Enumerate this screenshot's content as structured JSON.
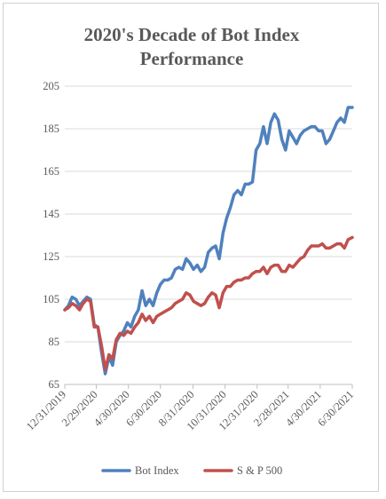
{
  "chart_data": {
    "type": "line",
    "title_line1": "2020's Decade of Bot Index",
    "title_line2": "Performance",
    "xlabel": "",
    "ylabel": "",
    "ylim": [
      65,
      205
    ],
    "yticks": [
      65,
      85,
      105,
      125,
      145,
      165,
      185,
      205
    ],
    "xticks": [
      "12/31/2019",
      "2/29/2020",
      "4/30/2020",
      "6/30/2020",
      "8/31/2020",
      "10/31/2020",
      "12/31/2020",
      "2/28/2021",
      "4/30/2021",
      "6/30/2021"
    ],
    "grid": true,
    "legend_position": "bottom",
    "series": [
      {
        "name": "Bot Index",
        "color": "#4f81bd",
        "points": [
          [
            "12/31/2019",
            100
          ],
          [
            "1/7/2020",
            102
          ],
          [
            "1/14/2020",
            106
          ],
          [
            "1/21/2020",
            105
          ],
          [
            "1/28/2020",
            102
          ],
          [
            "2/4/2020",
            104
          ],
          [
            "2/11/2020",
            106
          ],
          [
            "2/18/2020",
            105
          ],
          [
            "2/25/2020",
            93
          ],
          [
            "3/3/2020",
            92
          ],
          [
            "3/10/2020",
            80
          ],
          [
            "3/17/2020",
            70
          ],
          [
            "3/24/2020",
            78
          ],
          [
            "3/31/2020",
            74
          ],
          [
            "4/7/2020",
            85
          ],
          [
            "4/14/2020",
            88
          ],
          [
            "4/21/2020",
            90
          ],
          [
            "4/28/2020",
            94
          ],
          [
            "5/5/2020",
            92
          ],
          [
            "5/12/2020",
            97
          ],
          [
            "5/19/2020",
            100
          ],
          [
            "5/26/2020",
            109
          ],
          [
            "6/2/2020",
            102
          ],
          [
            "6/9/2020",
            105
          ],
          [
            "6/16/2020",
            102
          ],
          [
            "6/23/2020",
            108
          ],
          [
            "6/30/2020",
            112
          ],
          [
            "7/7/2020",
            114
          ],
          [
            "7/14/2020",
            114
          ],
          [
            "7/21/2020",
            115
          ],
          [
            "7/28/2020",
            119
          ],
          [
            "8/4/2020",
            120
          ],
          [
            "8/11/2020",
            119
          ],
          [
            "8/18/2020",
            124
          ],
          [
            "8/25/2020",
            122
          ],
          [
            "9/1/2020",
            119
          ],
          [
            "9/8/2020",
            121
          ],
          [
            "9/15/2020",
            118
          ],
          [
            "9/22/2020",
            120
          ],
          [
            "9/29/2020",
            127
          ],
          [
            "10/6/2020",
            129
          ],
          [
            "10/13/2020",
            130
          ],
          [
            "10/20/2020",
            124
          ],
          [
            "10/27/2020",
            136
          ],
          [
            "11/3/2020",
            143
          ],
          [
            "11/10/2020",
            148
          ],
          [
            "11/17/2020",
            154
          ],
          [
            "11/24/2020",
            156
          ],
          [
            "12/1/2020",
            154
          ],
          [
            "12/8/2020",
            159
          ],
          [
            "12/15/2020",
            159
          ],
          [
            "12/22/2020",
            160
          ],
          [
            "12/29/2020",
            175
          ],
          [
            "1/5/2021",
            178
          ],
          [
            "1/12/2021",
            186
          ],
          [
            "1/19/2021",
            178
          ],
          [
            "1/26/2021",
            188
          ],
          [
            "2/2/2021",
            192
          ],
          [
            "2/9/2021",
            189
          ],
          [
            "2/16/2021",
            180
          ],
          [
            "2/23/2021",
            175
          ],
          [
            "3/2/2021",
            184
          ],
          [
            "3/9/2021",
            181
          ],
          [
            "3/16/2021",
            178
          ],
          [
            "3/23/2021",
            182
          ],
          [
            "3/30/2021",
            184
          ],
          [
            "4/6/2021",
            185
          ],
          [
            "4/13/2021",
            186
          ],
          [
            "4/20/2021",
            186
          ],
          [
            "4/27/2021",
            184
          ],
          [
            "5/4/2021",
            184
          ],
          [
            "5/11/2021",
            178
          ],
          [
            "5/18/2021",
            180
          ],
          [
            "5/25/2021",
            184
          ],
          [
            "6/1/2021",
            188
          ],
          [
            "6/8/2021",
            190
          ],
          [
            "6/15/2021",
            188
          ],
          [
            "6/22/2021",
            195
          ],
          [
            "6/30/2021",
            195
          ]
        ]
      },
      {
        "name": "S & P 500",
        "color": "#c0504d",
        "points": [
          [
            "12/31/2019",
            100
          ],
          [
            "1/7/2020",
            101
          ],
          [
            "1/14/2020",
            103
          ],
          [
            "1/21/2020",
            102
          ],
          [
            "1/28/2020",
            100
          ],
          [
            "2/4/2020",
            103
          ],
          [
            "2/11/2020",
            105
          ],
          [
            "2/18/2020",
            104
          ],
          [
            "2/25/2020",
            92
          ],
          [
            "3/3/2020",
            92
          ],
          [
            "3/10/2020",
            83
          ],
          [
            "3/17/2020",
            72
          ],
          [
            "3/24/2020",
            79
          ],
          [
            "3/31/2020",
            77
          ],
          [
            "4/7/2020",
            86
          ],
          [
            "4/14/2020",
            89
          ],
          [
            "4/21/2020",
            88
          ],
          [
            "4/28/2020",
            90
          ],
          [
            "5/5/2020",
            89
          ],
          [
            "5/12/2020",
            92
          ],
          [
            "5/19/2020",
            94
          ],
          [
            "5/26/2020",
            98
          ],
          [
            "6/2/2020",
            95
          ],
          [
            "6/9/2020",
            97
          ],
          [
            "6/16/2020",
            94
          ],
          [
            "6/23/2020",
            97
          ],
          [
            "6/30/2020",
            98
          ],
          [
            "7/7/2020",
            99
          ],
          [
            "7/14/2020",
            100
          ],
          [
            "7/21/2020",
            101
          ],
          [
            "7/28/2020",
            103
          ],
          [
            "8/4/2020",
            104
          ],
          [
            "8/11/2020",
            105
          ],
          [
            "8/18/2020",
            108
          ],
          [
            "8/25/2020",
            107
          ],
          [
            "9/1/2020",
            104
          ],
          [
            "9/8/2020",
            103
          ],
          [
            "9/15/2020",
            102
          ],
          [
            "9/22/2020",
            103
          ],
          [
            "9/29/2020",
            106
          ],
          [
            "10/6/2020",
            108
          ],
          [
            "10/13/2020",
            107
          ],
          [
            "10/20/2020",
            101
          ],
          [
            "10/27/2020",
            108
          ],
          [
            "11/3/2020",
            111
          ],
          [
            "11/10/2020",
            111
          ],
          [
            "11/17/2020",
            113
          ],
          [
            "11/24/2020",
            114
          ],
          [
            "12/1/2020",
            114
          ],
          [
            "12/8/2020",
            115
          ],
          [
            "12/15/2020",
            115
          ],
          [
            "12/22/2020",
            117
          ],
          [
            "12/29/2020",
            118
          ],
          [
            "1/5/2021",
            118
          ],
          [
            "1/12/2021",
            120
          ],
          [
            "1/19/2021",
            117
          ],
          [
            "1/26/2021",
            120
          ],
          [
            "2/2/2021",
            121
          ],
          [
            "2/9/2021",
            121
          ],
          [
            "2/16/2021",
            118
          ],
          [
            "2/23/2021",
            118
          ],
          [
            "3/2/2021",
            121
          ],
          [
            "3/9/2021",
            120
          ],
          [
            "3/16/2021",
            122
          ],
          [
            "3/23/2021",
            124
          ],
          [
            "3/30/2021",
            125
          ],
          [
            "4/6/2021",
            128
          ],
          [
            "4/13/2021",
            130
          ],
          [
            "4/20/2021",
            130
          ],
          [
            "4/27/2021",
            130
          ],
          [
            "5/4/2021",
            131
          ],
          [
            "5/11/2021",
            129
          ],
          [
            "5/18/2021",
            129
          ],
          [
            "5/25/2021",
            130
          ],
          [
            "6/1/2021",
            131
          ],
          [
            "6/8/2021",
            131
          ],
          [
            "6/15/2021",
            129
          ],
          [
            "6/22/2021",
            133
          ],
          [
            "6/30/2021",
            134
          ]
        ]
      }
    ]
  }
}
